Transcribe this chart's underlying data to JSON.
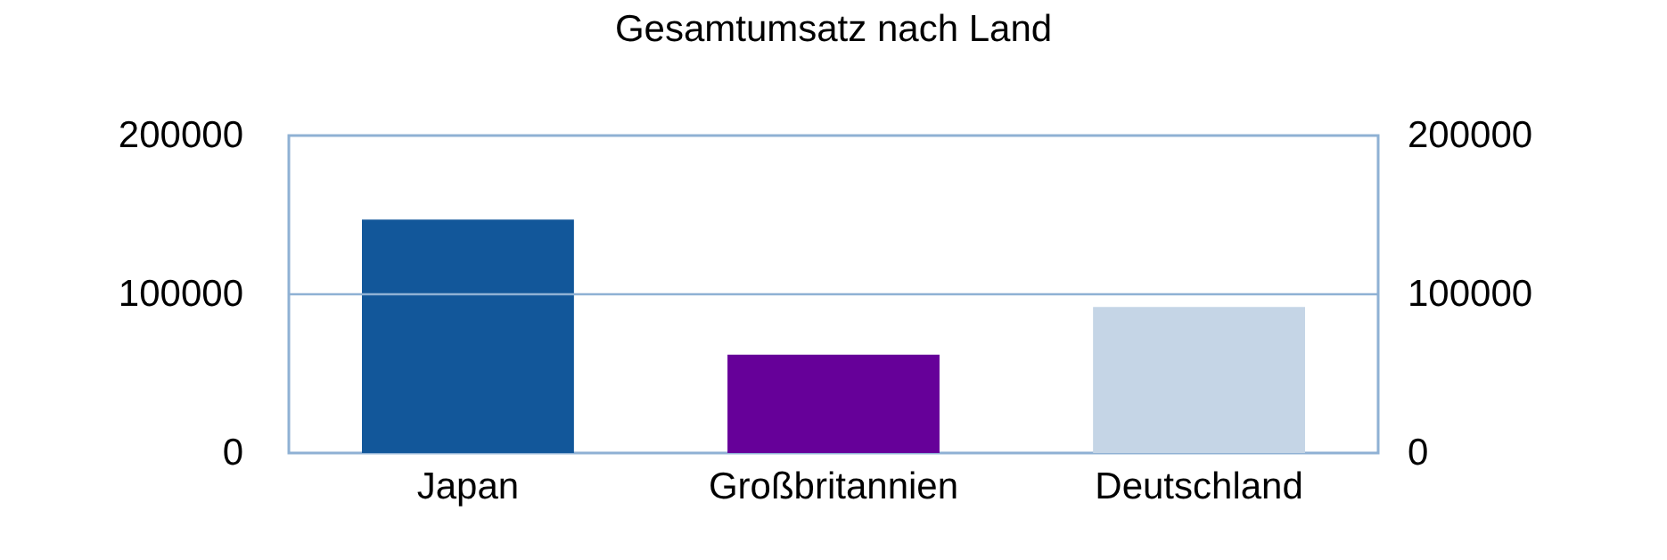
{
  "chart_data": {
    "type": "bar",
    "title": "Gesamtumsatz nach Land",
    "categories": [
      "Japan",
      "Großbritannien",
      "Deutschland"
    ],
    "values": [
      147000,
      62000,
      92000
    ],
    "colors": [
      "#12579a",
      "#660099",
      "#c5d5e6"
    ],
    "ylim": [
      0,
      200000
    ],
    "yticks": [
      0,
      100000,
      200000
    ],
    "y2lim": [
      0,
      200000
    ],
    "y2ticks": [
      0,
      100000,
      200000
    ],
    "ref_lines": [
      {
        "axis": "y",
        "value": 100000,
        "color": "#8fb1d4"
      }
    ]
  }
}
